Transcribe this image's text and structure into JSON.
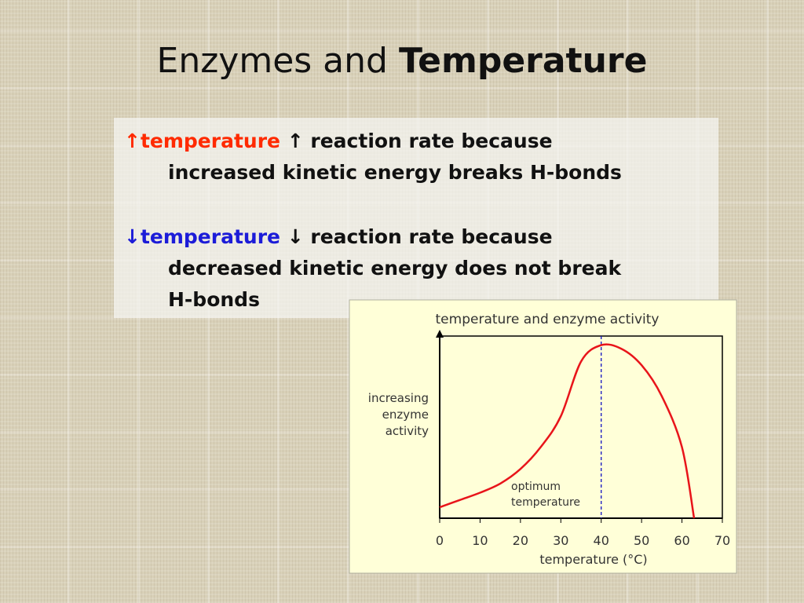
{
  "slide": {
    "title": {
      "plain": "Enzymes and",
      "bold": "Temperature"
    },
    "bullets": [
      {
        "arrow": "↑",
        "keyword": "temperature",
        "keyword_color": "#ff2a00",
        "arrow2": "↑",
        "lines": [
          "reaction rate because",
          "increased kinetic energy breaks H-bonds"
        ]
      },
      {
        "arrow": "↓",
        "keyword": "temperature",
        "keyword_color": "#1c1cd8",
        "arrow2": "↓",
        "lines": [
          "reaction rate because",
          "decreased kinetic energy does not break",
          "H-bonds"
        ]
      }
    ]
  },
  "chart_data": {
    "type": "line",
    "title": "temperature and enzyme activity",
    "x_label": "temperature (°C)",
    "y_label": [
      "increasing",
      "enzyme",
      "activity"
    ],
    "annotation": [
      "optimum",
      "temperature"
    ],
    "x": [
      0,
      5,
      10,
      15,
      20,
      25,
      30,
      35,
      40,
      45,
      50,
      55,
      60,
      63
    ],
    "series": [
      {
        "color": "#e8141a",
        "values": [
          6,
          10,
          14,
          19,
          27,
          39,
          56,
          86,
          95,
          93,
          84,
          67,
          39,
          0
        ]
      }
    ],
    "reference_line": {
      "x": 40,
      "color": "#1010c0"
    },
    "xlim": [
      0,
      70
    ],
    "ylim": [
      0,
      100
    ],
    "xticks": [
      0,
      10,
      20,
      30,
      40,
      50,
      60,
      70
    ]
  }
}
